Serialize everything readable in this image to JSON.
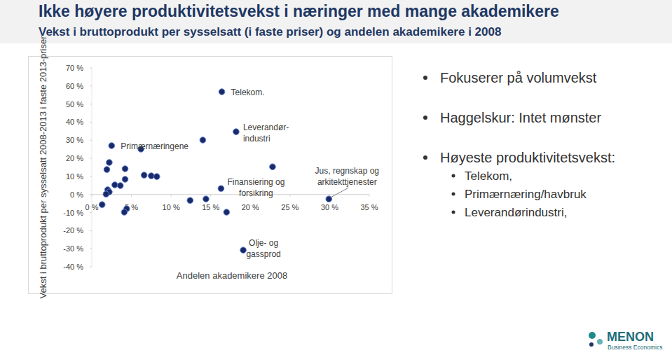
{
  "chart_data": {
    "type": "scatter",
    "title": "Ikke høyere produktivitetsvekst i næringer med mange akademikere",
    "subtitle": "Vekst i bruttoprodukt per sysselsatt (i faste priser) og andelen akademikere i 2008",
    "x_label": "Andelen akademikere 2008",
    "y_label": "Vekst i bruttoprodukt per sysselsatt 2008-2013 i faste 2013-priser",
    "x": [
      16.4,
      18.2,
      2.5,
      6.2,
      14.0,
      2.2,
      1.9,
      4.2,
      22.8,
      6.6,
      7.5,
      8.2,
      4.2,
      2.9,
      3.6,
      2.0,
      2.2,
      1.8,
      16.3,
      1.3,
      4.4,
      4.1,
      12.4,
      14.4,
      17.0,
      29.9,
      19.1
    ],
    "series": [
      {
        "color": "#1b2a66",
        "marker": "circle",
        "values": [
          56.8,
          34.7,
          27.0,
          25.1,
          30.1,
          17.7,
          13.8,
          14.2,
          15.3,
          10.7,
          10.3,
          9.9,
          8.4,
          5.3,
          4.9,
          2.6,
          1.4,
          0.2,
          3.3,
          -5.6,
          -7.9,
          -9.8,
          -3.3,
          -2.5,
          -9.8,
          -2.5,
          -30.8
        ],
        "labels": [
          "Telekom.",
          "Leverandør-\nindustri",
          "Primærnæringene",
          null,
          null,
          null,
          null,
          null,
          null,
          null,
          null,
          null,
          null,
          null,
          null,
          null,
          null,
          null,
          "Finansiering og\nforsikring",
          null,
          null,
          null,
          null,
          null,
          null,
          "Jus, regnskap og\narkitekttjenester",
          "Olje- og\ngassprod"
        ]
      }
    ],
    "xlim": [
      0,
      35
    ],
    "xticks": [
      {
        "value": 0,
        "label": "0 %"
      },
      {
        "value": 5,
        "label": "5 %"
      },
      {
        "value": 10,
        "label": "10 %"
      },
      {
        "value": 15,
        "label": "15 %"
      },
      {
        "value": 20,
        "label": "20 %"
      },
      {
        "value": 25,
        "label": "25 %"
      },
      {
        "value": 30,
        "label": "30 %"
      },
      {
        "value": 35,
        "label": "35 %"
      }
    ],
    "ylim": [
      -40,
      70
    ],
    "yticks": [
      {
        "value": -40,
        "label": "-40 %"
      },
      {
        "value": -30,
        "label": "-30 %"
      },
      {
        "value": -20,
        "label": "-20 %"
      },
      {
        "value": -10,
        "label": "-10 %"
      },
      {
        "value": 0,
        "label": "0 %"
      },
      {
        "value": 10,
        "label": "10 %"
      },
      {
        "value": 20,
        "label": "20 %"
      },
      {
        "value": 30,
        "label": "30 %"
      },
      {
        "value": 40,
        "label": "40 %"
      },
      {
        "value": 50,
        "label": "50 %"
      },
      {
        "value": 60,
        "label": "60 %"
      },
      {
        "value": 70,
        "label": "70 %"
      }
    ],
    "grid": false
  },
  "bullets": [
    {
      "text": "Fokuserer på volumvekst",
      "items": []
    },
    {
      "text": "Haggelskur: Intet mønster",
      "items": []
    },
    {
      "text": "Høyeste produktivitetsvekst:",
      "items": [
        "Telekom,",
        "Primærnæring/havbruk",
        "Leverandørindustri,"
      ]
    }
  ],
  "logo": {
    "name": "MENON",
    "tagline": "Business Economics"
  }
}
